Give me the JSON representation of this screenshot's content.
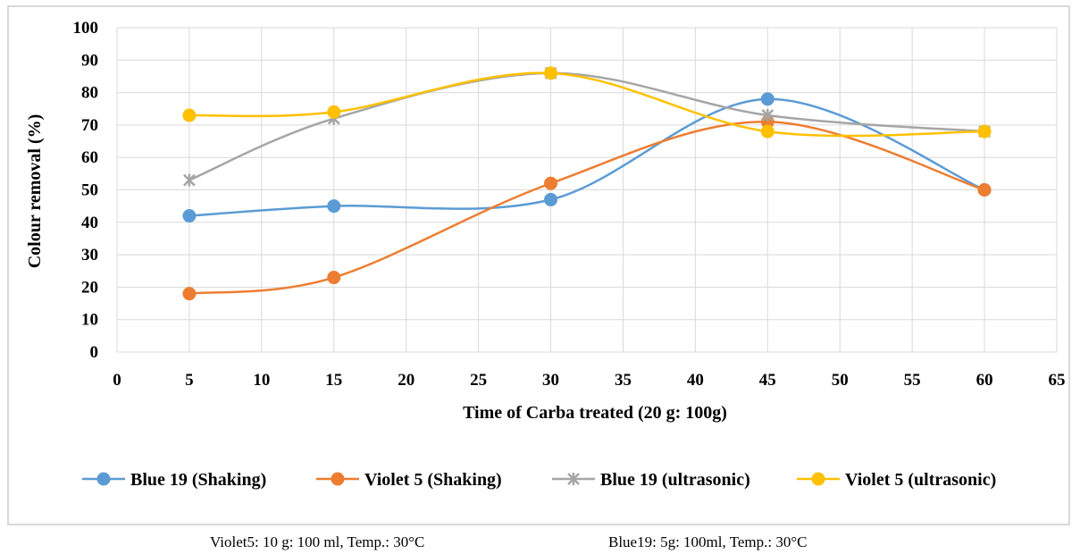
{
  "chart_data": {
    "type": "line",
    "xlabel": "Time of Carba treated (20 g: 100g)",
    "ylabel": "Colour removal  (%)",
    "xlim": [
      0,
      65
    ],
    "ylim": [
      0,
      100
    ],
    "xticks": [
      0,
      5,
      10,
      15,
      20,
      25,
      30,
      35,
      40,
      45,
      50,
      55,
      60,
      65
    ],
    "yticks": [
      0,
      10,
      20,
      30,
      40,
      50,
      60,
      70,
      80,
      90,
      100
    ],
    "grid": true,
    "smooth": true,
    "legend_position": "bottom",
    "x": [
      5,
      15,
      30,
      45,
      60
    ],
    "series": [
      {
        "name": "Blue 19 (Shaking)",
        "color": "#5b9bd5",
        "marker": "circle",
        "values": [
          42,
          45,
          47,
          78,
          50
        ]
      },
      {
        "name": "Violet 5 (Shaking)",
        "color": "#ed7d31",
        "marker": "circle",
        "values": [
          18,
          23,
          52,
          71,
          50
        ]
      },
      {
        "name": "Blue 19 (ultrasonic)",
        "color": "#a5a5a5",
        "marker": "star",
        "values": [
          53,
          72,
          86,
          73,
          68
        ]
      },
      {
        "name": "Violet 5 (ultrasonic)",
        "color": "#ffc000",
        "marker": "circle",
        "values": [
          73,
          74,
          86,
          68,
          68
        ]
      }
    ]
  },
  "caption": {
    "left": "Violet5: 10 g: 100 ml, Temp.: 30°C",
    "right": "Blue19: 5g: 100ml, Temp.: 30°C"
  }
}
